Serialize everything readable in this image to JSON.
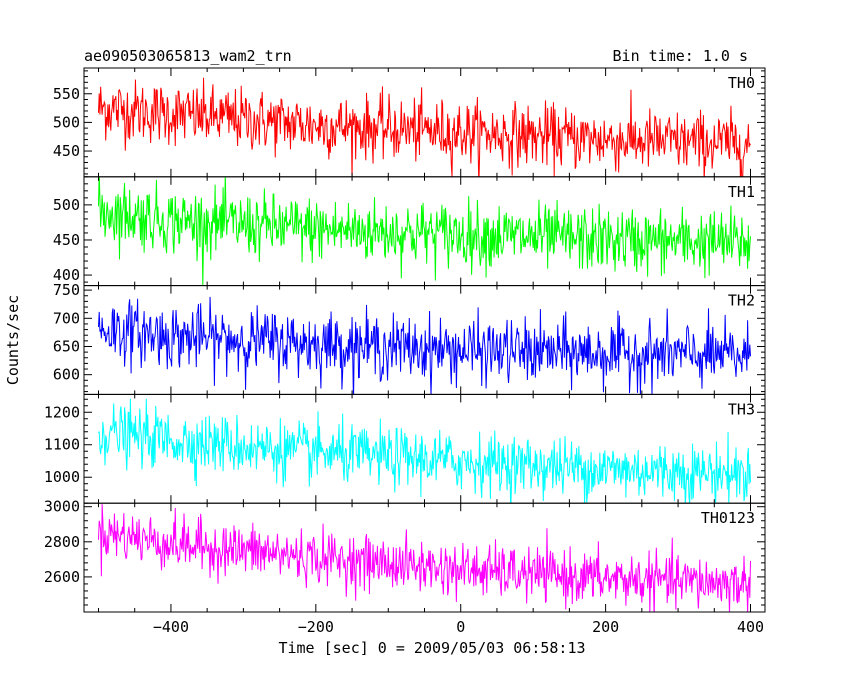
{
  "chart_data": {
    "type": "line",
    "title": "ae090503065813_wam2_trn",
    "bin_time_label": "Bin time: 1.0 s",
    "xlabel": "Time [sec] 0 = 2009/05/03 06:58:13",
    "ylabel": "Counts/sec",
    "xlim": [
      -520,
      420
    ],
    "x_ticks": [
      -400,
      -200,
      0,
      200,
      400
    ],
    "x_tick_labels": [
      "−400",
      "−200",
      "0",
      "200",
      "400"
    ],
    "x_range": [
      -500,
      400
    ],
    "n_points": 900,
    "panels": [
      {
        "name": "TH0",
        "color": "#ff0000",
        "ylim": [
          405,
          595
        ],
        "y_ticks": [
          450,
          500,
          550
        ],
        "y_tick_labels": [
          "450",
          "500",
          "550"
        ],
        "trend": [
          [
            -500,
            525
          ],
          [
            -400,
            515
          ],
          [
            -200,
            495
          ],
          [
            0,
            483
          ],
          [
            200,
            470
          ],
          [
            400,
            462
          ]
        ],
        "noise": 27
      },
      {
        "name": "TH1",
        "color": "#00ff00",
        "ylim": [
          385,
          540
        ],
        "y_ticks": [
          400,
          450,
          500
        ],
        "y_tick_labels": [
          "400",
          "450",
          "500"
        ],
        "trend": [
          [
            -500,
            492
          ],
          [
            -400,
            478
          ],
          [
            -200,
            465
          ],
          [
            0,
            458
          ],
          [
            200,
            450
          ],
          [
            400,
            446
          ]
        ],
        "noise": 23
      },
      {
        "name": "TH2",
        "color": "#0000ff",
        "ylim": [
          565,
          758
        ],
        "y_ticks": [
          600,
          650,
          700,
          750
        ],
        "y_tick_labels": [
          "600",
          "650",
          "700",
          "750"
        ],
        "trend": [
          [
            -500,
            682
          ],
          [
            -400,
            668
          ],
          [
            -200,
            655
          ],
          [
            0,
            643
          ],
          [
            200,
            638
          ],
          [
            400,
            633
          ]
        ],
        "noise": 28
      },
      {
        "name": "TH3",
        "color": "#00ffff",
        "ylim": [
          920,
          1255
        ],
        "y_ticks": [
          1000,
          1100,
          1200
        ],
        "y_tick_labels": [
          "1000",
          "1100",
          "1200"
        ],
        "trend": [
          [
            -500,
            1140
          ],
          [
            -400,
            1115
          ],
          [
            -200,
            1075
          ],
          [
            0,
            1048
          ],
          [
            200,
            1025
          ],
          [
            400,
            1010
          ]
        ],
        "noise": 45
      },
      {
        "name": "TH0123",
        "color": "#ff00ff",
        "ylim": [
          2400,
          3020
        ],
        "y_ticks": [
          2600,
          2800,
          3000
        ],
        "y_tick_labels": [
          "2600",
          "2800",
          "3000"
        ],
        "trend": [
          [
            -500,
            2860
          ],
          [
            -400,
            2790
          ],
          [
            -200,
            2710
          ],
          [
            0,
            2640
          ],
          [
            200,
            2590
          ],
          [
            400,
            2560
          ]
        ],
        "noise": 75
      }
    ]
  }
}
